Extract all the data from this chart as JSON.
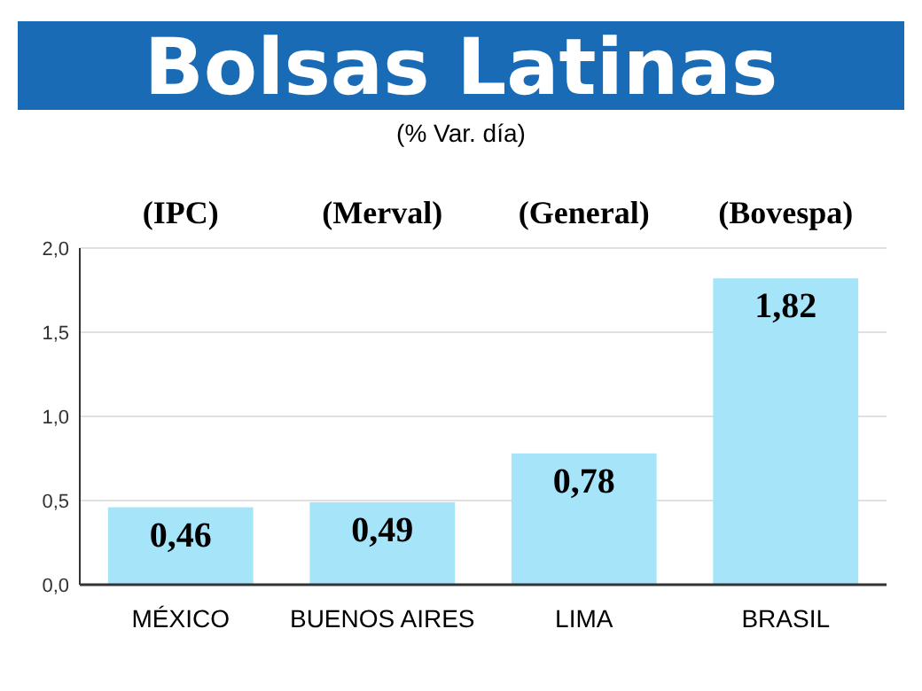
{
  "chart_data": {
    "type": "bar",
    "title": "Bolsas Latinas",
    "subtitle": "(% Var. día)",
    "categories": [
      "MÉXICO",
      "BUENOS AIRES",
      "LIMA",
      "BRASIL"
    ],
    "values": [
      0.46,
      0.49,
      0.78,
      1.82
    ],
    "color": "#a6e4fa",
    "value_labels": [
      "0,46",
      "0,49",
      "0,78",
      "1,82"
    ],
    "annotations": [
      "(IPC)",
      "(Merval)",
      "(General)",
      "(Bovespa)"
    ],
    "ylim": [
      0,
      2
    ],
    "yticks": [
      {
        "value": 0,
        "label": "0,0"
      },
      {
        "value": 0.5,
        "label": "0,5"
      },
      {
        "value": 1,
        "label": "1,0"
      },
      {
        "value": 1.5,
        "label": "1,5"
      },
      {
        "value": 2,
        "label": "2,0"
      }
    ],
    "grid": "y"
  }
}
